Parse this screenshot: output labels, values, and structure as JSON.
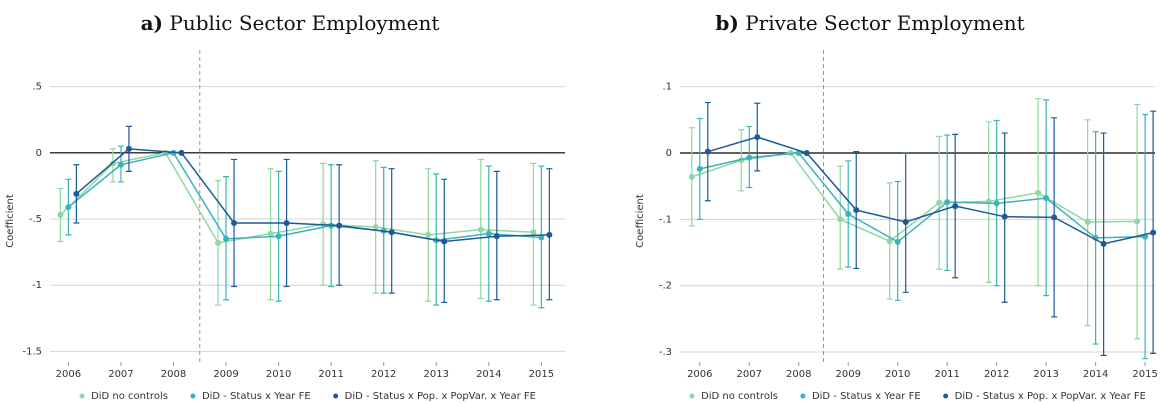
{
  "chart_data": [
    {
      "type": "line",
      "panel_label": "a)",
      "title": "Public Sector Employment",
      "ylabel": "Coefficient",
      "x": [
        2006,
        2007,
        2008,
        2009,
        2010,
        2011,
        2012,
        2013,
        2014,
        2015
      ],
      "xlim": [
        2005.65,
        2015.45
      ],
      "xticks": [
        2006,
        2007,
        2008,
        2009,
        2010,
        2011,
        2012,
        2013,
        2014,
        2015
      ],
      "ylim": [
        -1.58,
        0.55
      ],
      "yticks": [
        {
          "value": 0.5,
          "label": ".5"
        },
        0,
        {
          "value": -0.5,
          "label": "-.5"
        },
        -1,
        -1.5
      ],
      "grid": true,
      "hline": 0,
      "vline": 2008.5,
      "legend": "bottom",
      "series": [
        {
          "name": "DiD no controls",
          "color": "#8fd8a3",
          "values": [
            -0.47,
            -0.08,
            0,
            -0.68,
            -0.61,
            -0.54,
            -0.56,
            -0.62,
            -0.58,
            -0.6
          ],
          "ci_low": [
            -0.67,
            -0.22,
            0,
            -1.15,
            -1.11,
            -1.0,
            -1.06,
            -1.12,
            -1.1,
            -1.15
          ],
          "ci_high": [
            -0.27,
            0.03,
            0,
            -0.21,
            -0.12,
            -0.08,
            -0.06,
            -0.12,
            -0.05,
            -0.08
          ]
        },
        {
          "name": "DiD - Status x Year FE",
          "color": "#3bb3b8",
          "values": [
            -0.41,
            -0.09,
            0,
            -0.65,
            -0.63,
            -0.55,
            -0.59,
            -0.66,
            -0.61,
            -0.64
          ],
          "ci_low": [
            -0.62,
            -0.22,
            0,
            -1.11,
            -1.12,
            -1.01,
            -1.06,
            -1.15,
            -1.12,
            -1.17
          ],
          "ci_high": [
            -0.2,
            0.05,
            0,
            -0.18,
            -0.14,
            -0.09,
            -0.11,
            -0.16,
            -0.1,
            -0.1
          ]
        },
        {
          "name": "DiD - Status x Pop. x PopVar. x Year FE",
          "color": "#1f5a96",
          "values": [
            -0.31,
            0.03,
            0,
            -0.53,
            -0.53,
            -0.55,
            -0.6,
            -0.67,
            -0.63,
            -0.62
          ],
          "ci_low": [
            -0.53,
            -0.14,
            0,
            -1.01,
            -1.01,
            -1.0,
            -1.06,
            -1.13,
            -1.11,
            -1.11
          ],
          "ci_high": [
            -0.09,
            0.2,
            0,
            -0.05,
            -0.05,
            -0.09,
            -0.12,
            -0.2,
            -0.14,
            -0.12
          ]
        }
      ]
    },
    {
      "type": "line",
      "panel_label": "b)",
      "title": "Private Sector Employment",
      "ylabel": "Coefficient",
      "x": [
        2006,
        2007,
        2008,
        2009,
        2010,
        2011,
        2012,
        2013,
        2014,
        2015
      ],
      "xlim": [
        2005.6,
        2015.2
      ],
      "xticks": [
        2006,
        2007,
        2008,
        2009,
        2010,
        2011,
        2012,
        2013,
        2014,
        2015
      ],
      "ylim": [
        -0.315,
        0.11
      ],
      "yticks": [
        {
          "value": 0.1,
          "label": ".1"
        },
        0,
        {
          "value": -0.1,
          "label": "-.1"
        },
        {
          "value": -0.2,
          "label": "-.2"
        },
        {
          "value": -0.3,
          "label": "-.3"
        }
      ],
      "grid": true,
      "hline": 0,
      "vline": 2008.5,
      "legend": "bottom",
      "series": [
        {
          "name": "DiD no controls",
          "color": "#8fd8a3",
          "values": [
            -0.036,
            -0.011,
            0,
            -0.1,
            -0.133,
            -0.075,
            -0.073,
            -0.06,
            -0.104,
            -0.103
          ],
          "ci_low": [
            -0.11,
            -0.057,
            0,
            -0.175,
            -0.22,
            -0.175,
            -0.195,
            -0.2,
            -0.26,
            -0.28
          ],
          "ci_high": [
            0.038,
            0.035,
            0,
            -0.02,
            -0.045,
            0.025,
            0.047,
            0.082,
            0.05,
            0.073
          ]
        },
        {
          "name": "DiD - Status x Year FE",
          "color": "#3bb3b8",
          "values": [
            -0.024,
            -0.007,
            0,
            -0.092,
            -0.134,
            -0.074,
            -0.076,
            -0.068,
            -0.128,
            -0.126
          ],
          "ci_low": [
            -0.1,
            -0.052,
            0,
            -0.172,
            -0.222,
            -0.177,
            -0.2,
            -0.215,
            -0.288,
            -0.31
          ],
          "ci_high": [
            0.052,
            0.04,
            0,
            -0.012,
            -0.043,
            0.027,
            0.049,
            0.08,
            0.032,
            0.058
          ]
        },
        {
          "name": "DiD - Status x Pop. x PopVar. x Year FE",
          "color": "#1f5a96",
          "values": [
            0.002,
            0.024,
            0,
            -0.086,
            -0.104,
            -0.08,
            -0.096,
            -0.097,
            -0.137,
            -0.12
          ],
          "ci_low": [
            -0.072,
            -0.027,
            0,
            -0.174,
            -0.21,
            -0.188,
            -0.225,
            -0.247,
            -0.305,
            -0.302
          ],
          "ci_high": [
            0.076,
            0.075,
            0,
            0.002,
            0.0,
            0.028,
            0.03,
            0.053,
            0.03,
            0.063
          ]
        }
      ]
    }
  ]
}
